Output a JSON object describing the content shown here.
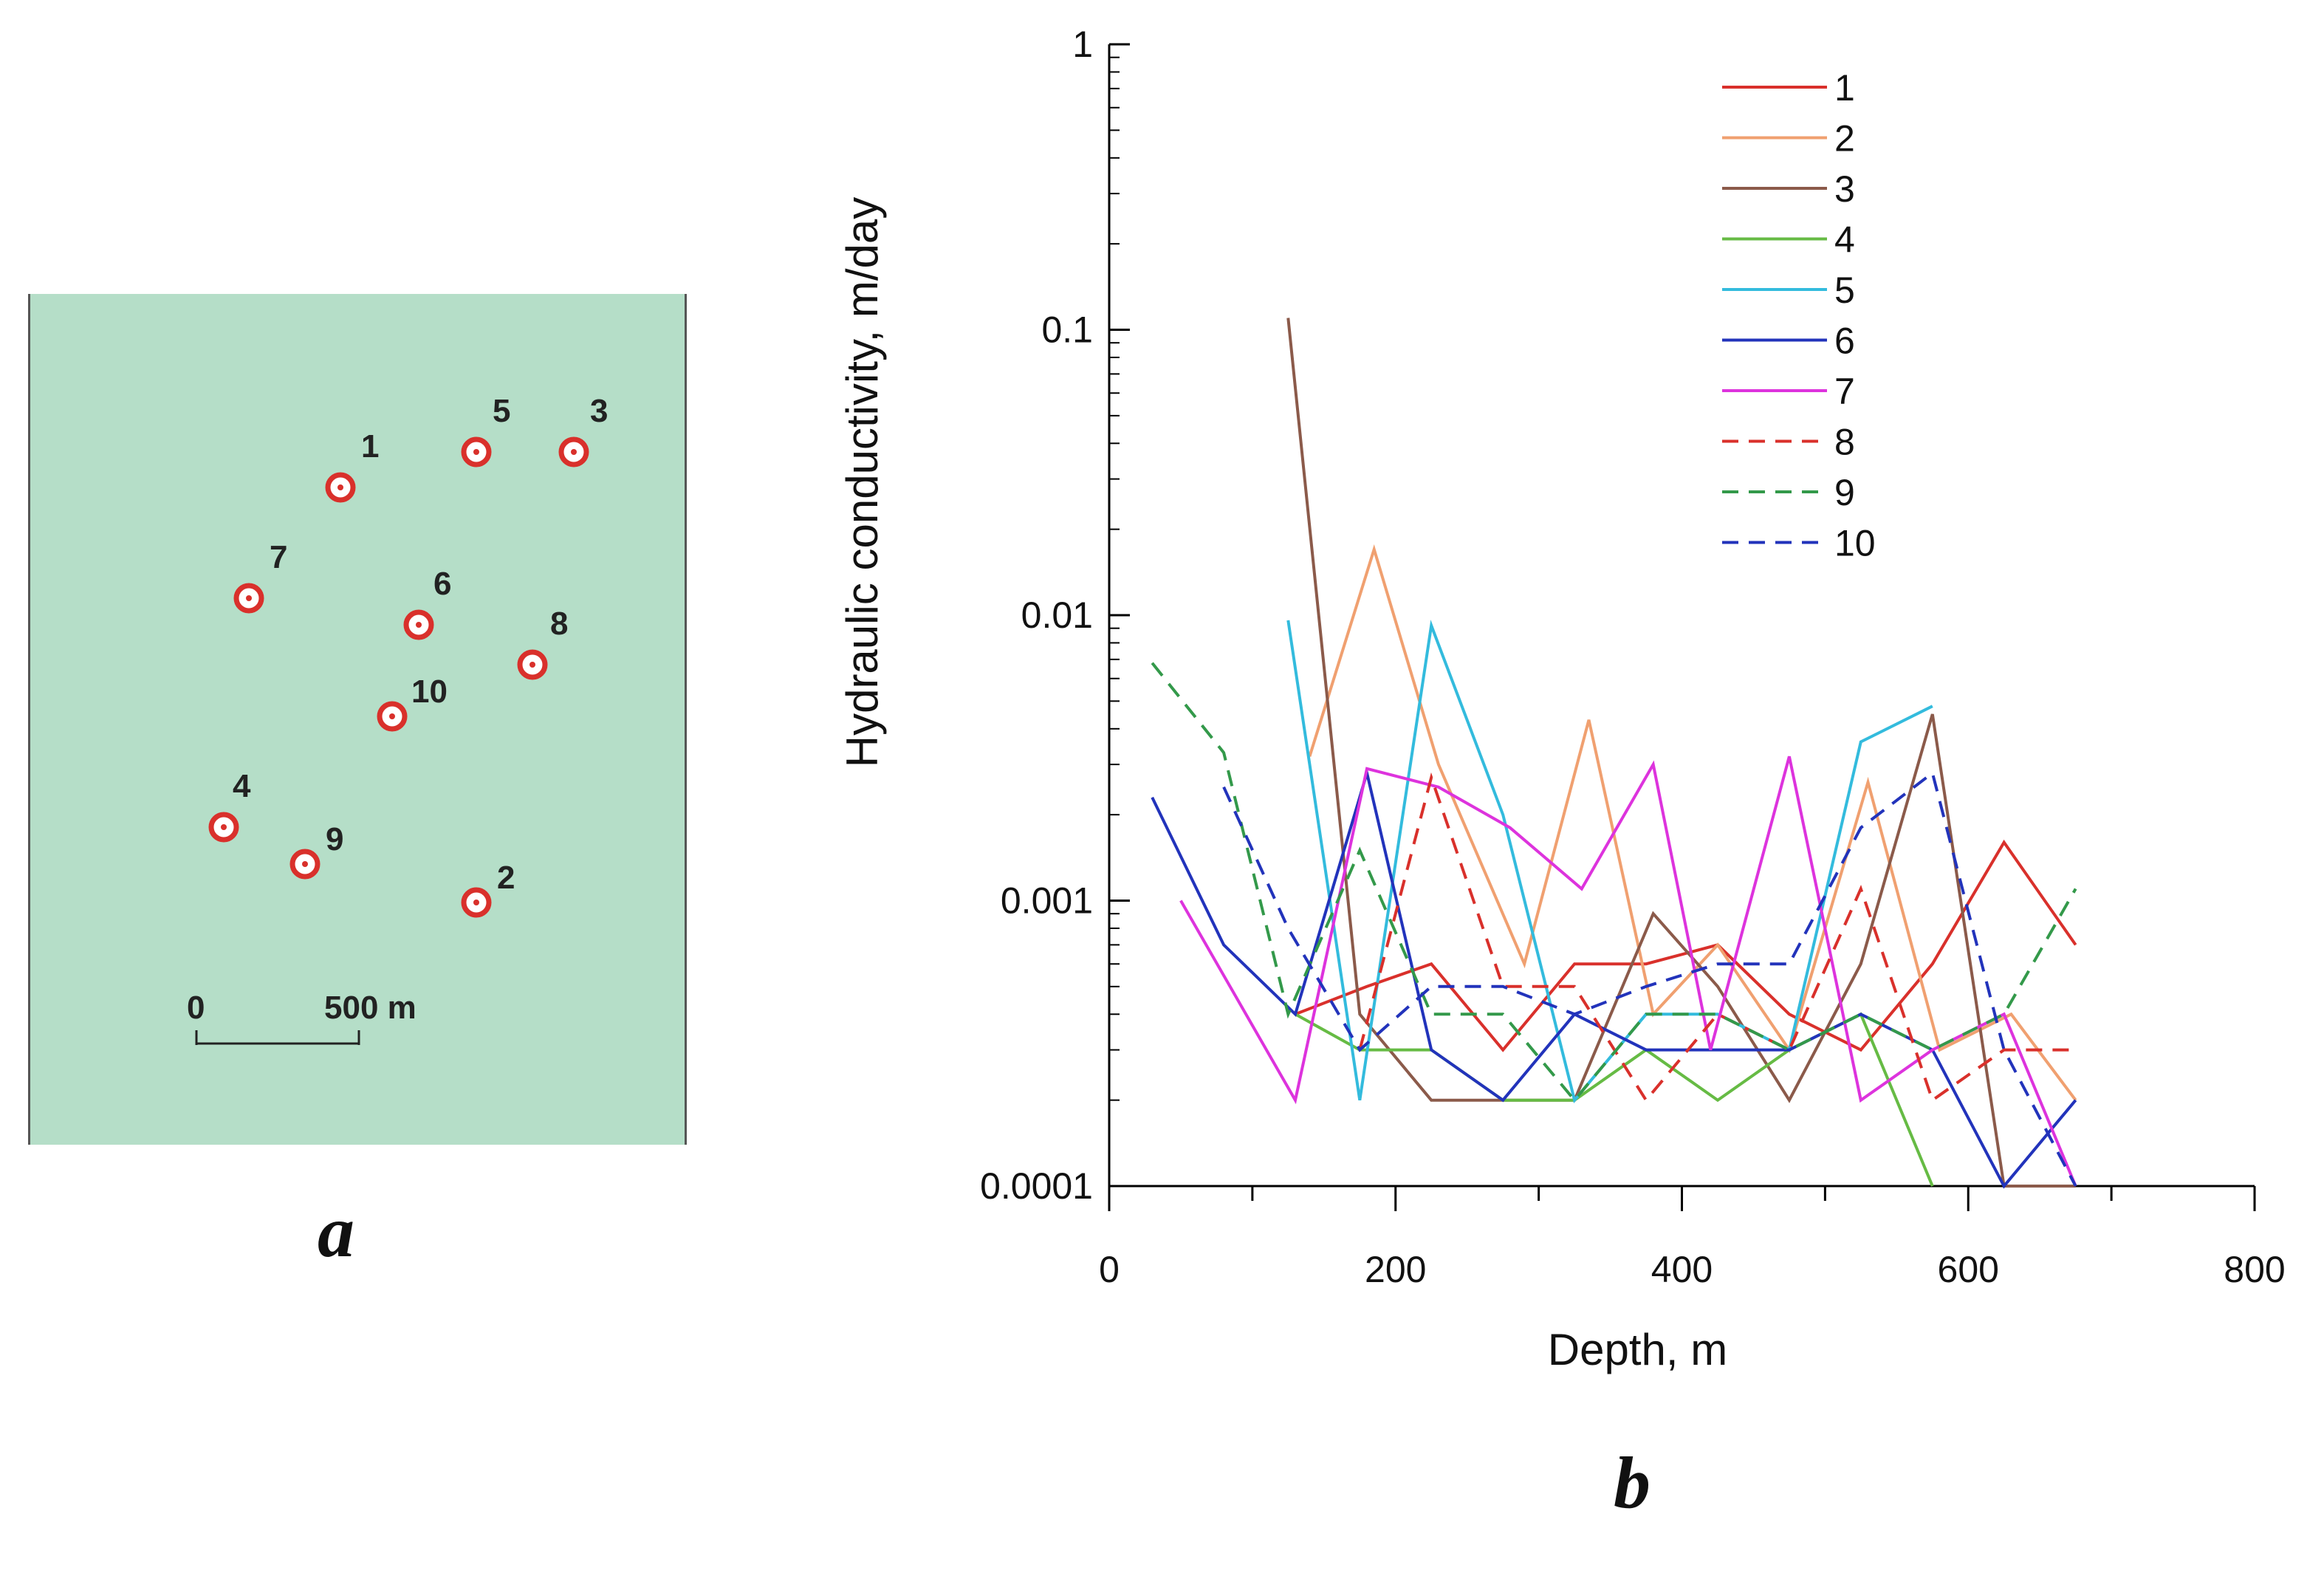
{
  "panel_a": {
    "caption": "a",
    "wells": [
      {
        "label": "1"
      },
      {
        "label": "5"
      },
      {
        "label": "3"
      },
      {
        "label": "7"
      },
      {
        "label": "6"
      },
      {
        "label": "8"
      },
      {
        "label": "10"
      },
      {
        "label": "4"
      },
      {
        "label": "9"
      },
      {
        "label": "2"
      }
    ],
    "scale_bar": {
      "start_label": "0",
      "end_label": "500 m"
    },
    "colors": {
      "background": "#b5dec8",
      "marker": "#d9302b"
    }
  },
  "panel_b_caption": "b",
  "chart_data": {
    "type": "line",
    "title": "",
    "xlabel": "Depth, m",
    "ylabel": "Hydraulic conductivity, m/day",
    "xlim": [
      0,
      800
    ],
    "ylim": [
      0.0001,
      1
    ],
    "yscale": "log",
    "x_ticks": [
      "0",
      "200",
      "400",
      "600",
      "800"
    ],
    "y_ticks": [
      "0.0001",
      "0.001",
      "0.01",
      "0.1",
      "1"
    ],
    "legend_position": "top-right",
    "series": [
      {
        "name": "1",
        "color": "#d9302b",
        "dash": false,
        "x": [
          130,
          180,
          225,
          275,
          325,
          375,
          425,
          475,
          525,
          575,
          625,
          675
        ],
        "y": [
          0.0004,
          0.0005,
          0.0006,
          0.0003,
          0.0006,
          0.0006,
          0.0007,
          0.0004,
          0.0003,
          0.0006,
          0.0016,
          0.0007
        ]
      },
      {
        "name": "2",
        "color": "#f0a070",
        "dash": false,
        "x": [
          140,
          185,
          230,
          290,
          335,
          380,
          425,
          475,
          530,
          580,
          630,
          675
        ],
        "y": [
          0.0032,
          0.017,
          0.003,
          0.0006,
          0.0043,
          0.0004,
          0.0007,
          0.0003,
          0.0026,
          0.0003,
          0.0004,
          0.0002
        ]
      },
      {
        "name": "3",
        "color": "#8b5a4a",
        "dash": false,
        "x": [
          125,
          175,
          225,
          275,
          325,
          380,
          425,
          475,
          525,
          575,
          625,
          675
        ],
        "y": [
          0.11,
          0.0004,
          0.0002,
          0.0002,
          0.0002,
          0.0009,
          0.0005,
          0.0002,
          0.0006,
          0.0045,
          0.0001,
          0.0001
        ]
      },
      {
        "name": "4",
        "color": "#66bb44",
        "dash": false,
        "x": [
          130,
          175,
          225,
          275,
          325,
          375,
          425,
          475,
          525,
          575
        ],
        "y": [
          0.0004,
          0.0003,
          0.0003,
          0.0002,
          0.0002,
          0.0003,
          0.0002,
          0.0003,
          0.0004,
          0.0001
        ]
      },
      {
        "name": "5",
        "color": "#33bbdd",
        "dash": false,
        "x": [
          125,
          175,
          225,
          275,
          325,
          375,
          425,
          475,
          525,
          575
        ],
        "y": [
          0.0096,
          0.0002,
          0.0092,
          0.002,
          0.0002,
          0.0004,
          0.0004,
          0.0003,
          0.0036,
          0.0048
        ]
      },
      {
        "name": "6",
        "color": "#2233bb",
        "dash": false,
        "x": [
          30,
          80,
          130,
          180,
          225,
          275,
          325,
          375,
          425,
          475,
          525,
          575,
          625,
          675
        ],
        "y": [
          0.0023,
          0.0007,
          0.0004,
          0.0028,
          0.0003,
          0.0002,
          0.0004,
          0.0003,
          0.0003,
          0.0003,
          0.0004,
          0.0003,
          0.0001,
          0.0002
        ]
      },
      {
        "name": "7",
        "color": "#dd33dd",
        "dash": false,
        "x": [
          50,
          130,
          180,
          230,
          280,
          330,
          380,
          420,
          475,
          525,
          575,
          625,
          675
        ],
        "y": [
          0.001,
          0.0002,
          0.0029,
          0.0025,
          0.0018,
          0.0011,
          0.003,
          0.0003,
          0.0032,
          0.0002,
          0.0003,
          0.0004,
          0.0001
        ]
      },
      {
        "name": "8",
        "color": "#d9302b",
        "dash": true,
        "x": [
          175,
          225,
          275,
          325,
          375,
          425,
          475,
          525,
          575,
          625,
          675
        ],
        "y": [
          0.0003,
          0.0027,
          0.0005,
          0.0005,
          0.0002,
          0.0004,
          0.0003,
          0.0011,
          0.0002,
          0.0003,
          0.0003
        ]
      },
      {
        "name": "9",
        "color": "#33994a",
        "dash": true,
        "x": [
          30,
          80,
          125,
          175,
          225,
          275,
          325,
          375,
          425,
          475,
          525,
          575,
          625,
          675
        ],
        "y": [
          0.0068,
          0.0033,
          0.0004,
          0.0015,
          0.0004,
          0.0004,
          0.0002,
          0.0004,
          0.0004,
          0.0003,
          0.0004,
          0.0003,
          0.0004,
          0.0011
        ]
      },
      {
        "name": "10",
        "color": "#2233bb",
        "dash": true,
        "x": [
          80,
          125,
          175,
          225,
          275,
          325,
          375,
          425,
          475,
          525,
          575,
          625,
          675
        ],
        "y": [
          0.0025,
          0.0008,
          0.0003,
          0.0005,
          0.0005,
          0.0004,
          0.0005,
          0.0006,
          0.0006,
          0.0018,
          0.0028,
          0.0003,
          0.0001
        ]
      }
    ]
  }
}
